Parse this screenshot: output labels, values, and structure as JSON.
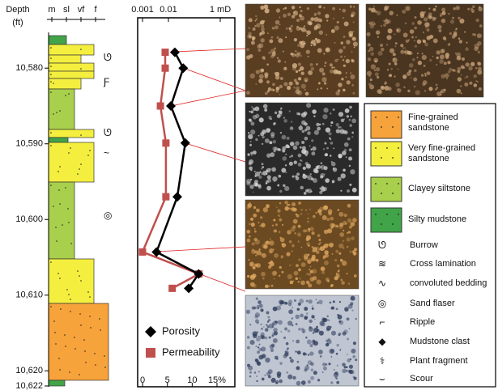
{
  "chart_data": [
    {
      "type": "lithology",
      "y_label": "Depth",
      "y_unit": "(ft)",
      "grain_sizes": [
        "m",
        "sl",
        "vf",
        "f"
      ],
      "ylim": [
        10575.7,
        10622
      ],
      "yticks": [
        {
          "value": 10580,
          "label": "10,580"
        },
        {
          "value": 10590,
          "label": "10,590"
        },
        {
          "value": 10600,
          "label": "10,600"
        },
        {
          "value": 10610,
          "label": "10,610"
        },
        {
          "value": 10620,
          "label": "10,620"
        },
        {
          "value": 10622,
          "label": "10,622"
        }
      ]
    },
    {
      "type": "line",
      "ylim": [
        10575.7,
        10622
      ],
      "xlim": [
        -1,
        18.6
      ],
      "xticks": [
        0,
        5,
        10,
        {
          "value": 15,
          "label": "15%"
        }
      ],
      "x2lim": [
        0.00065,
        3.65
      ],
      "x2log": true,
      "x2ticks": [
        0.001,
        0.01,
        {
          "value": 1,
          "label": "1 mD"
        }
      ],
      "depths": [
        10577.9,
        10580,
        10585,
        10589.9,
        10597,
        10604.3,
        10607.2,
        10609.1
      ],
      "series": [
        {
          "name": "Porosity",
          "color": "#000000",
          "marker": "diamond",
          "values": [
            6.5,
            8.2,
            5.7,
            8.6,
            7.0,
            2.8,
            11.3,
            9.3
          ]
        },
        {
          "name": "Permeability",
          "color": "#c0504d",
          "marker": "square",
          "axis": "x2",
          "values": [
            0.0075,
            0.0075,
            0.0049,
            0.008,
            0.008,
            0.001,
            0.15,
            0.014
          ]
        }
      ]
    }
  ],
  "legend": {
    "lithology": [
      {
        "label": "Fine-grained sandstone",
        "color": "#f7a33b"
      },
      {
        "label": "Very fine-grained sandstone",
        "color": "#f4ef3e"
      },
      {
        "label": "Clayey siltstone",
        "color": "#a9d04c"
      },
      {
        "label": "Silty mudstone",
        "color": "#41a448"
      }
    ],
    "symbols": [
      "Burrow",
      "Cross lamination",
      "convoluted bedding",
      "Sand flaser",
      "Ripple",
      "Mudstone clast",
      "Plant fragment",
      "Scour"
    ]
  }
}
